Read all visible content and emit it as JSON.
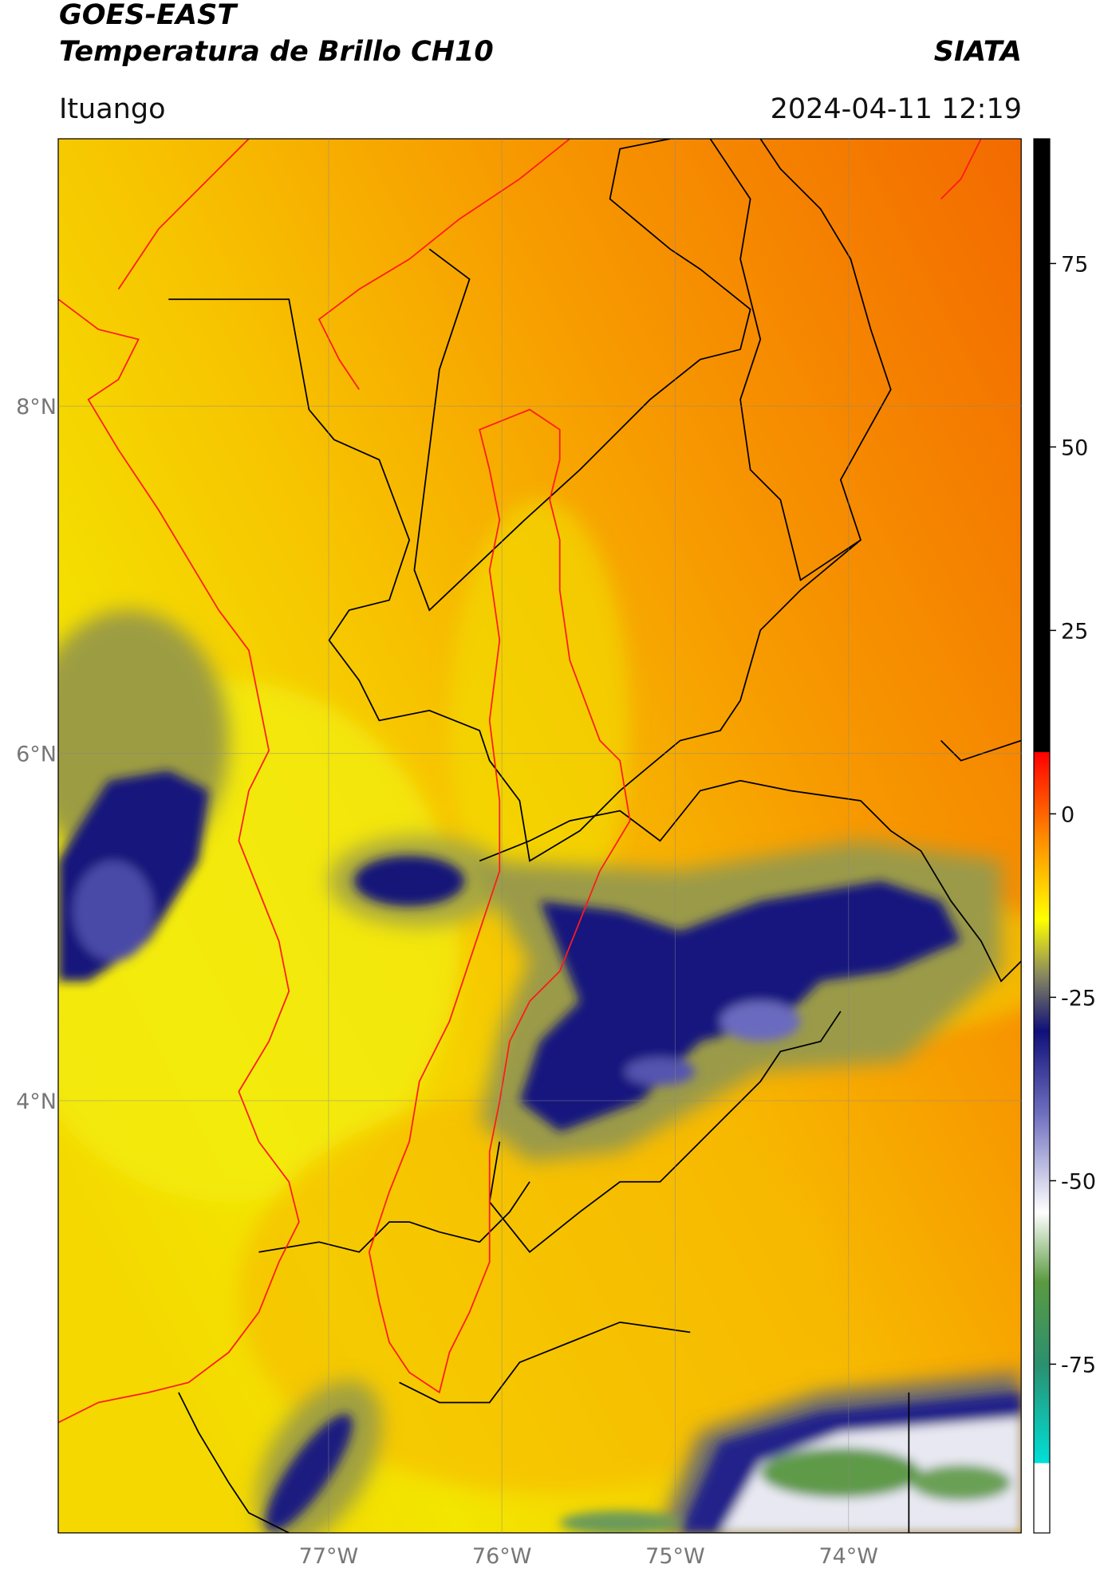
{
  "header": {
    "satellite": "GOES-EAST",
    "product": "Temperatura de Brillo CH10",
    "institution": "SIATA",
    "location": "Ituango",
    "datetime": "2024-04-11 12:19"
  },
  "map": {
    "xlim": [
      -78.56,
      -73.0
    ],
    "ylim": [
      1.51,
      9.54
    ],
    "xticks": [
      {
        "value": -77,
        "label": "77°W"
      },
      {
        "value": -76,
        "label": "76°W"
      },
      {
        "value": -75,
        "label": "75°W"
      },
      {
        "value": -74,
        "label": "74°W"
      }
    ],
    "yticks": [
      {
        "value": 8,
        "label": "8°N"
      },
      {
        "value": 6,
        "label": "6°N"
      },
      {
        "value": 4,
        "label": "4°N"
      }
    ],
    "grid": true
  },
  "colorbar": {
    "lim": [
      -98,
      92
    ],
    "ticks": [
      75,
      50,
      25,
      0,
      -25,
      -50,
      -75
    ]
  }
}
